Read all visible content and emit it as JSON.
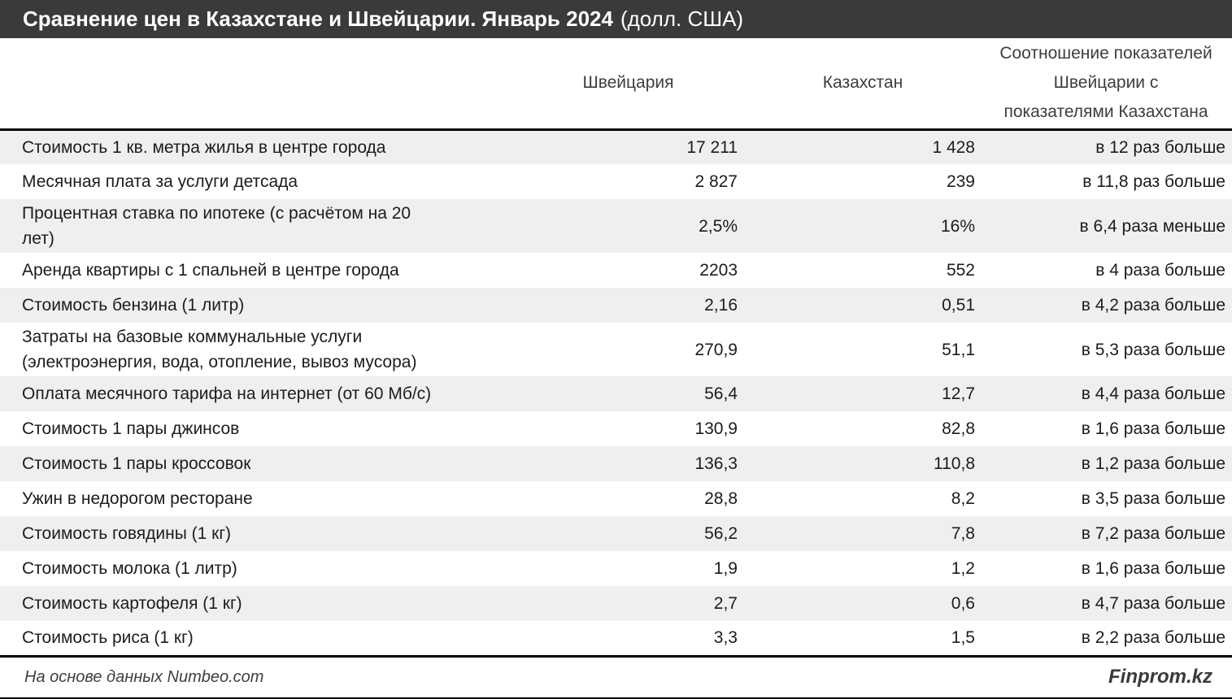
{
  "title": {
    "main": "Сравнение цен в Казахстане и Швейцарии. Январь 2024",
    "suffix": "(долл. США)"
  },
  "chart_data": {
    "type": "table",
    "title": "Сравнение цен в Казахстане и Швейцарии. Январь 2024 (долл. США)",
    "columns": {
      "switzerland": "Швейцария",
      "kazakhstan": "Казахстан",
      "ratio": "Соотношение показателей\nШвейцарии с\nпоказателями Казахстана"
    },
    "rows": [
      {
        "label": "Стоимость 1 кв. метра жилья в центре города",
        "switzerland": "17 211",
        "kazakhstan": "1 428",
        "ratio": "в 12 раз больше"
      },
      {
        "label": "Месячная плата за услуги детсада",
        "switzerland": "2 827",
        "kazakhstan": "239",
        "ratio": "в 11,8 раз больше"
      },
      {
        "label": "Процентная ставка по ипотеке (с расчётом на 20\nлет)",
        "switzerland": "2,5%",
        "kazakhstan": "16%",
        "ratio": "в 6,4 раза меньше"
      },
      {
        "label": "Аренда квартиры с 1 спальней в центре города",
        "switzerland": "2203",
        "kazakhstan": "552",
        "ratio": "в 4 раза больше"
      },
      {
        "label": "Стоимость бензина (1 литр)",
        "switzerland": "2,16",
        "kazakhstan": "0,51",
        "ratio": "в 4,2 раза больше"
      },
      {
        "label": "Затраты на базовые коммунальные услуги\n(электроэнергия, вода, отопление, вывоз мусора)",
        "switzerland": "270,9",
        "kazakhstan": "51,1",
        "ratio": "в 5,3 раза больше"
      },
      {
        "label": "Оплата месячного тарифа на интернет (от 60 Мб/с)",
        "switzerland": "56,4",
        "kazakhstan": "12,7",
        "ratio": "в 4,4 раза больше"
      },
      {
        "label": "Стоимость 1 пары джинсов",
        "switzerland": "130,9",
        "kazakhstan": "82,8",
        "ratio": "в 1,6 раза больше"
      },
      {
        "label": "Стоимость 1 пары кроссовок",
        "switzerland": "136,3",
        "kazakhstan": "110,8",
        "ratio": "в 1,2 раза больше"
      },
      {
        "label": "Ужин в недорогом ресторане",
        "switzerland": "28,8",
        "kazakhstan": "8,2",
        "ratio": "в 3,5 раза больше"
      },
      {
        "label": "Стоимость говядины (1 кг)",
        "switzerland": "56,2",
        "kazakhstan": "7,8",
        "ratio": "в 7,2 раза больше"
      },
      {
        "label": "Стоимость молока (1 литр)",
        "switzerland": "1,9",
        "kazakhstan": "1,2",
        "ratio": "в 1,6 раза больше"
      },
      {
        "label": "Стоимость картофеля (1 кг)",
        "switzerland": "2,7",
        "kazakhstan": "0,6",
        "ratio": "в 4,7 раза больше"
      },
      {
        "label": "Стоимость риса (1 кг)",
        "switzerland": "3,3",
        "kazakhstan": "1,5",
        "ratio": "в 2,2 раза больше"
      }
    ]
  },
  "footer": {
    "source": "На основе данных Numbeo.com",
    "brand": "Finprom.kz"
  },
  "colors": {
    "titlebar_bg": "#3a3a3a",
    "titlebar_text": "#ffffff",
    "row_stripe": "#efefef",
    "border": "#000000",
    "header_text": "#3d3d3d",
    "body_text": "#1c1c1c"
  }
}
